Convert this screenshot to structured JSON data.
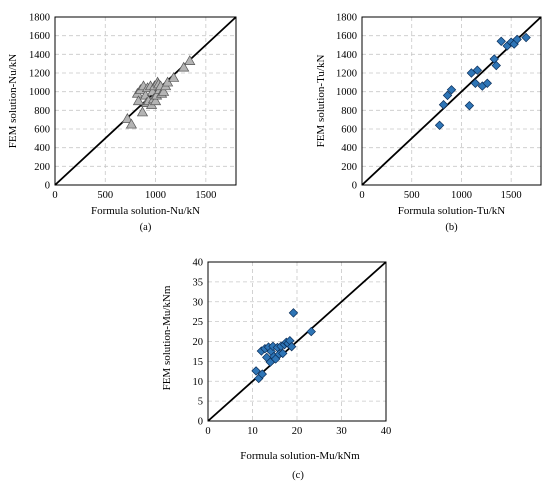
{
  "figure": {
    "panels": [
      {
        "caption": "(a)"
      },
      {
        "caption": "(b)"
      },
      {
        "caption": "(c)"
      }
    ]
  },
  "chart_data": [
    {
      "type": "scatter",
      "title": "",
      "xlabel": "Formula solution-Nu/kN",
      "ylabel": "FEM solution-Nu/kN",
      "xlim": [
        0,
        1800
      ],
      "ylim": [
        0,
        1800
      ],
      "xticks": [
        0,
        500,
        1000,
        1500
      ],
      "yticks": [
        0,
        200,
        400,
        600,
        800,
        1000,
        1200,
        1400,
        1600,
        1800
      ],
      "grid": true,
      "marker": "triangle",
      "marker_color": "#b4b4b4",
      "reference_line": "y = x",
      "series": [
        {
          "x": [
            720,
            760,
            820,
            830,
            850,
            870,
            880,
            900,
            910,
            920,
            930,
            950,
            960,
            970,
            980,
            990,
            1000,
            1010,
            1020,
            1030,
            1040,
            1050,
            1060,
            1080,
            1100,
            1120,
            1180,
            1280,
            1340
          ],
          "y": [
            710,
            650,
            980,
            900,
            1020,
            780,
            1060,
            960,
            880,
            1040,
            900,
            1060,
            860,
            1000,
            920,
            1060,
            900,
            960,
            1100,
            1080,
            1020,
            1060,
            980,
            1000,
            1060,
            1100,
            1150,
            1260,
            1330
          ]
        }
      ]
    },
    {
      "type": "scatter",
      "title": "",
      "xlabel": "Formula solution-Tu/kN",
      "ylabel": "FEM solution-Tu/kN",
      "xlim": [
        0,
        1800
      ],
      "ylim": [
        0,
        1800
      ],
      "xticks": [
        0,
        500,
        1000,
        1500
      ],
      "yticks": [
        0,
        200,
        400,
        600,
        800,
        1000,
        1200,
        1400,
        1600,
        1800
      ],
      "grid": true,
      "marker": "diamond",
      "marker_color": "#2e75b6",
      "reference_line": "y = x",
      "series": [
        {
          "x": [
            780,
            820,
            860,
            900,
            1080,
            1100,
            1140,
            1160,
            1210,
            1260,
            1330,
            1350,
            1400,
            1460,
            1500,
            1530,
            1560,
            1650
          ],
          "y": [
            640,
            860,
            960,
            1020,
            850,
            1200,
            1090,
            1230,
            1060,
            1090,
            1350,
            1280,
            1540,
            1490,
            1530,
            1510,
            1560,
            1580
          ]
        }
      ]
    },
    {
      "type": "scatter",
      "title": "",
      "xlabel": "Formula solution-Mu/kNm",
      "ylabel": "FEM solution-Mu/kNm",
      "xlim": [
        0,
        40
      ],
      "ylim": [
        0,
        40
      ],
      "xticks": [
        0,
        10,
        20,
        30,
        40
      ],
      "yticks": [
        0,
        5,
        10,
        15,
        20,
        25,
        30,
        35,
        40
      ],
      "grid": true,
      "marker": "diamond",
      "marker_color": "#2e75b6",
      "reference_line": "y = x",
      "series": [
        {
          "x": [
            10.8,
            11.4,
            12.0,
            12.2,
            12.8,
            13.2,
            13.6,
            14.0,
            14.2,
            14.6,
            14.8,
            15.2,
            15.6,
            16.0,
            16.4,
            16.8,
            17.2,
            17.6,
            18.0,
            18.4,
            18.8,
            19.2,
            23.2
          ],
          "y": [
            12.6,
            10.7,
            17.6,
            11.8,
            18.2,
            16.0,
            18.6,
            14.8,
            17.5,
            18.8,
            16.2,
            15.6,
            18.5,
            16.8,
            18.8,
            17.0,
            19.2,
            19.8,
            19.5,
            20.2,
            18.7,
            27.2,
            22.5
          ]
        }
      ]
    }
  ]
}
